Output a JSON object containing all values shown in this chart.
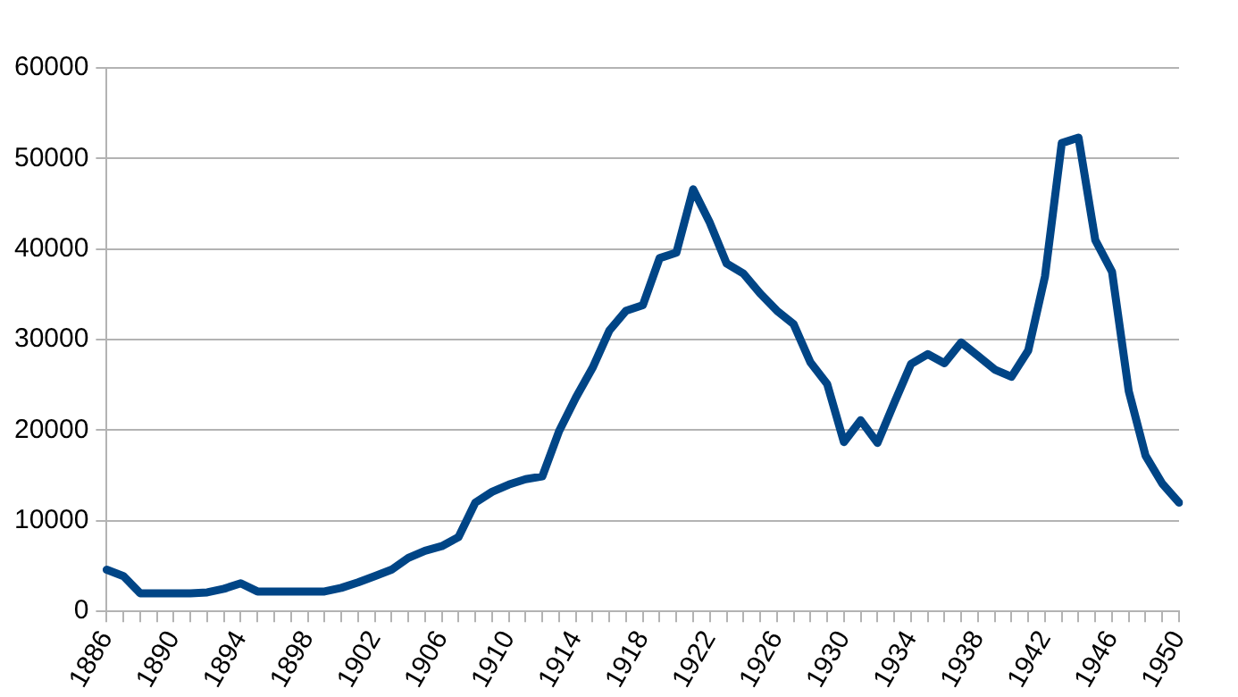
{
  "chart_data": {
    "type": "line",
    "categories": [
      "1886",
      null,
      null,
      null,
      "1890",
      null,
      null,
      null,
      "1894",
      null,
      null,
      null,
      "1898",
      null,
      null,
      null,
      "1902",
      null,
      null,
      null,
      "1906",
      null,
      null,
      null,
      "1910",
      null,
      null,
      null,
      "1914",
      null,
      null,
      null,
      "1918",
      null,
      null,
      null,
      "1922",
      null,
      null,
      null,
      "1926",
      null,
      null,
      null,
      "1930",
      null,
      null,
      null,
      "1934",
      null,
      null,
      null,
      "1938",
      null,
      null,
      null,
      "1942",
      null,
      null,
      null,
      "1946",
      null,
      null,
      null,
      "1950"
    ],
    "series": [
      {
        "color": "#004586",
        "values": [
          4600,
          3900,
          2000,
          2000,
          2000,
          2000,
          2100,
          2500,
          3100,
          2200,
          2200,
          2200,
          2200,
          2200,
          2600,
          3200,
          3900,
          4600,
          5900,
          6700,
          7200,
          8200,
          12000,
          13200,
          14000,
          14600,
          14900,
          19900,
          23600,
          26900,
          31000,
          33200,
          33800,
          39000,
          39600,
          46600,
          42900,
          38400,
          37300,
          35100,
          33200,
          31700,
          27500,
          25100,
          18700,
          21100,
          18600,
          23000,
          27300,
          28400,
          27400,
          29700,
          28200,
          26700,
          25900,
          28800,
          37000,
          51700,
          52300,
          41000,
          37500,
          24300,
          17200,
          14100,
          12000
        ]
      }
    ],
    "ylim": [
      0,
      60000
    ],
    "yticks": [
      0,
      10000,
      20000,
      30000,
      40000,
      50000,
      60000
    ],
    "grid": "y",
    "legend": false,
    "marker": "none",
    "line_style": "solid"
  }
}
